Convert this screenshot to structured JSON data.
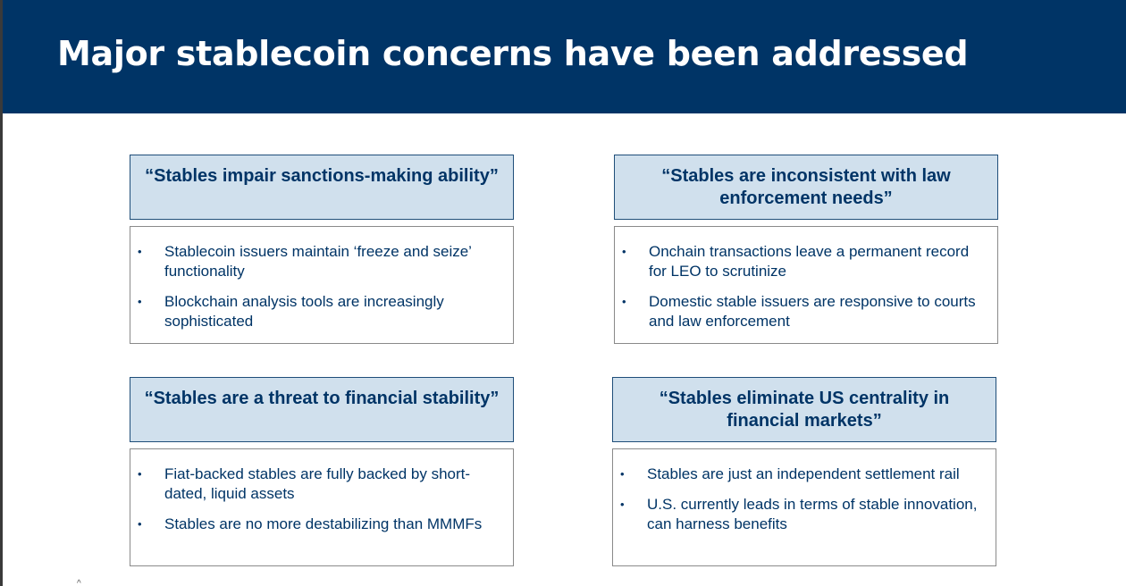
{
  "slide": {
    "title": "Major stablecoin concerns have been addressed"
  },
  "concerns": [
    {
      "title": "“Stables impair sanctions-making ability”",
      "points": [
        "Stablecoin issuers maintain ‘freeze and seize’ functionality",
        "Blockchain analysis tools are increasingly sophisticated"
      ]
    },
    {
      "title": "“Stables are inconsistent with law enforcement needs”",
      "points": [
        "Onchain transactions leave a permanent record for LEO to scrutinize",
        "Domestic stable issuers are responsive to courts and law enforcement"
      ]
    },
    {
      "title": "“Stables are a threat to financial stability”",
      "points": [
        "Fiat-backed stables are fully backed by short-dated, liquid assets",
        "Stables are no more destabilizing than MMMFs"
      ]
    },
    {
      "title": "“Stables eliminate US centrality in financial markets”",
      "points": [
        "Stables are just an independent settlement rail",
        "U.S. currently leads in terms of stable innovation, can harness benefits"
      ]
    }
  ],
  "bullet_glyph": "•",
  "page_mark_glyph": "^",
  "colors": {
    "header_background": "#003466",
    "title_box_background": "#d0e0ed",
    "text": "#003466"
  }
}
